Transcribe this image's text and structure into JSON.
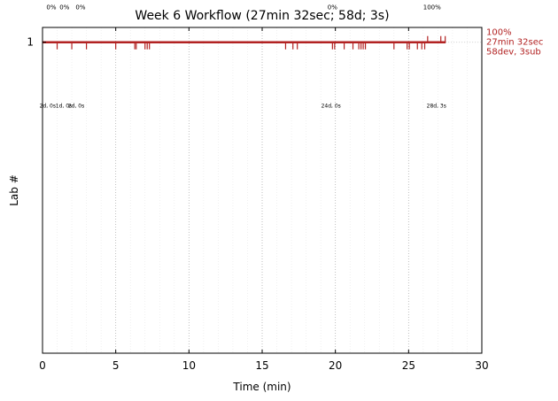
{
  "chart_data": {
    "type": "timeline",
    "title": "Week 6 Workflow (27min 32sec; 58d; 3s)",
    "xlabel": "Time (min)",
    "ylabel": "Lab #",
    "xlim": [
      0,
      30
    ],
    "ylim": [
      -1.1,
      1.1
    ],
    "xticks": [
      0,
      5,
      10,
      15,
      20,
      25,
      30
    ],
    "yticks": [
      1
    ],
    "grid": "vertical dotted lines at major and minor x ticks",
    "series": [
      {
        "lab": 1,
        "color": "#b22222",
        "x_end": 27.53,
        "events_down": [
          1.0,
          2.0,
          3.0,
          5.0,
          6.3,
          6.4,
          7.0,
          7.15,
          7.3,
          16.6,
          17.1,
          17.4,
          19.8,
          19.95,
          20.6,
          21.2,
          21.6,
          21.75,
          21.9,
          22.05,
          24.0,
          24.9,
          25.05,
          25.6,
          25.9,
          26.1
        ],
        "events_up": [
          26.3,
          27.2,
          27.5
        ],
        "percent_labels": [
          {
            "x": 0.6,
            "text": "0%"
          },
          {
            "x": 1.5,
            "text": "0%"
          },
          {
            "x": 2.6,
            "text": "0%"
          },
          {
            "x": 19.8,
            "text": "0%"
          },
          {
            "x": 26.6,
            "text": "100%"
          }
        ],
        "count_labels": [
          {
            "x": 0.35,
            "text": "2d, 0s"
          },
          {
            "x": 1.45,
            "text": "1d, 0s"
          },
          {
            "x": 2.3,
            "text": "2d, 0s"
          },
          {
            "x": 19.7,
            "text": "24d, 0s"
          },
          {
            "x": 26.9,
            "text": "28d, 3s"
          }
        ],
        "end_label": [
          "100%",
          "27min 32sec",
          "58dev, 3sub"
        ]
      }
    ]
  }
}
